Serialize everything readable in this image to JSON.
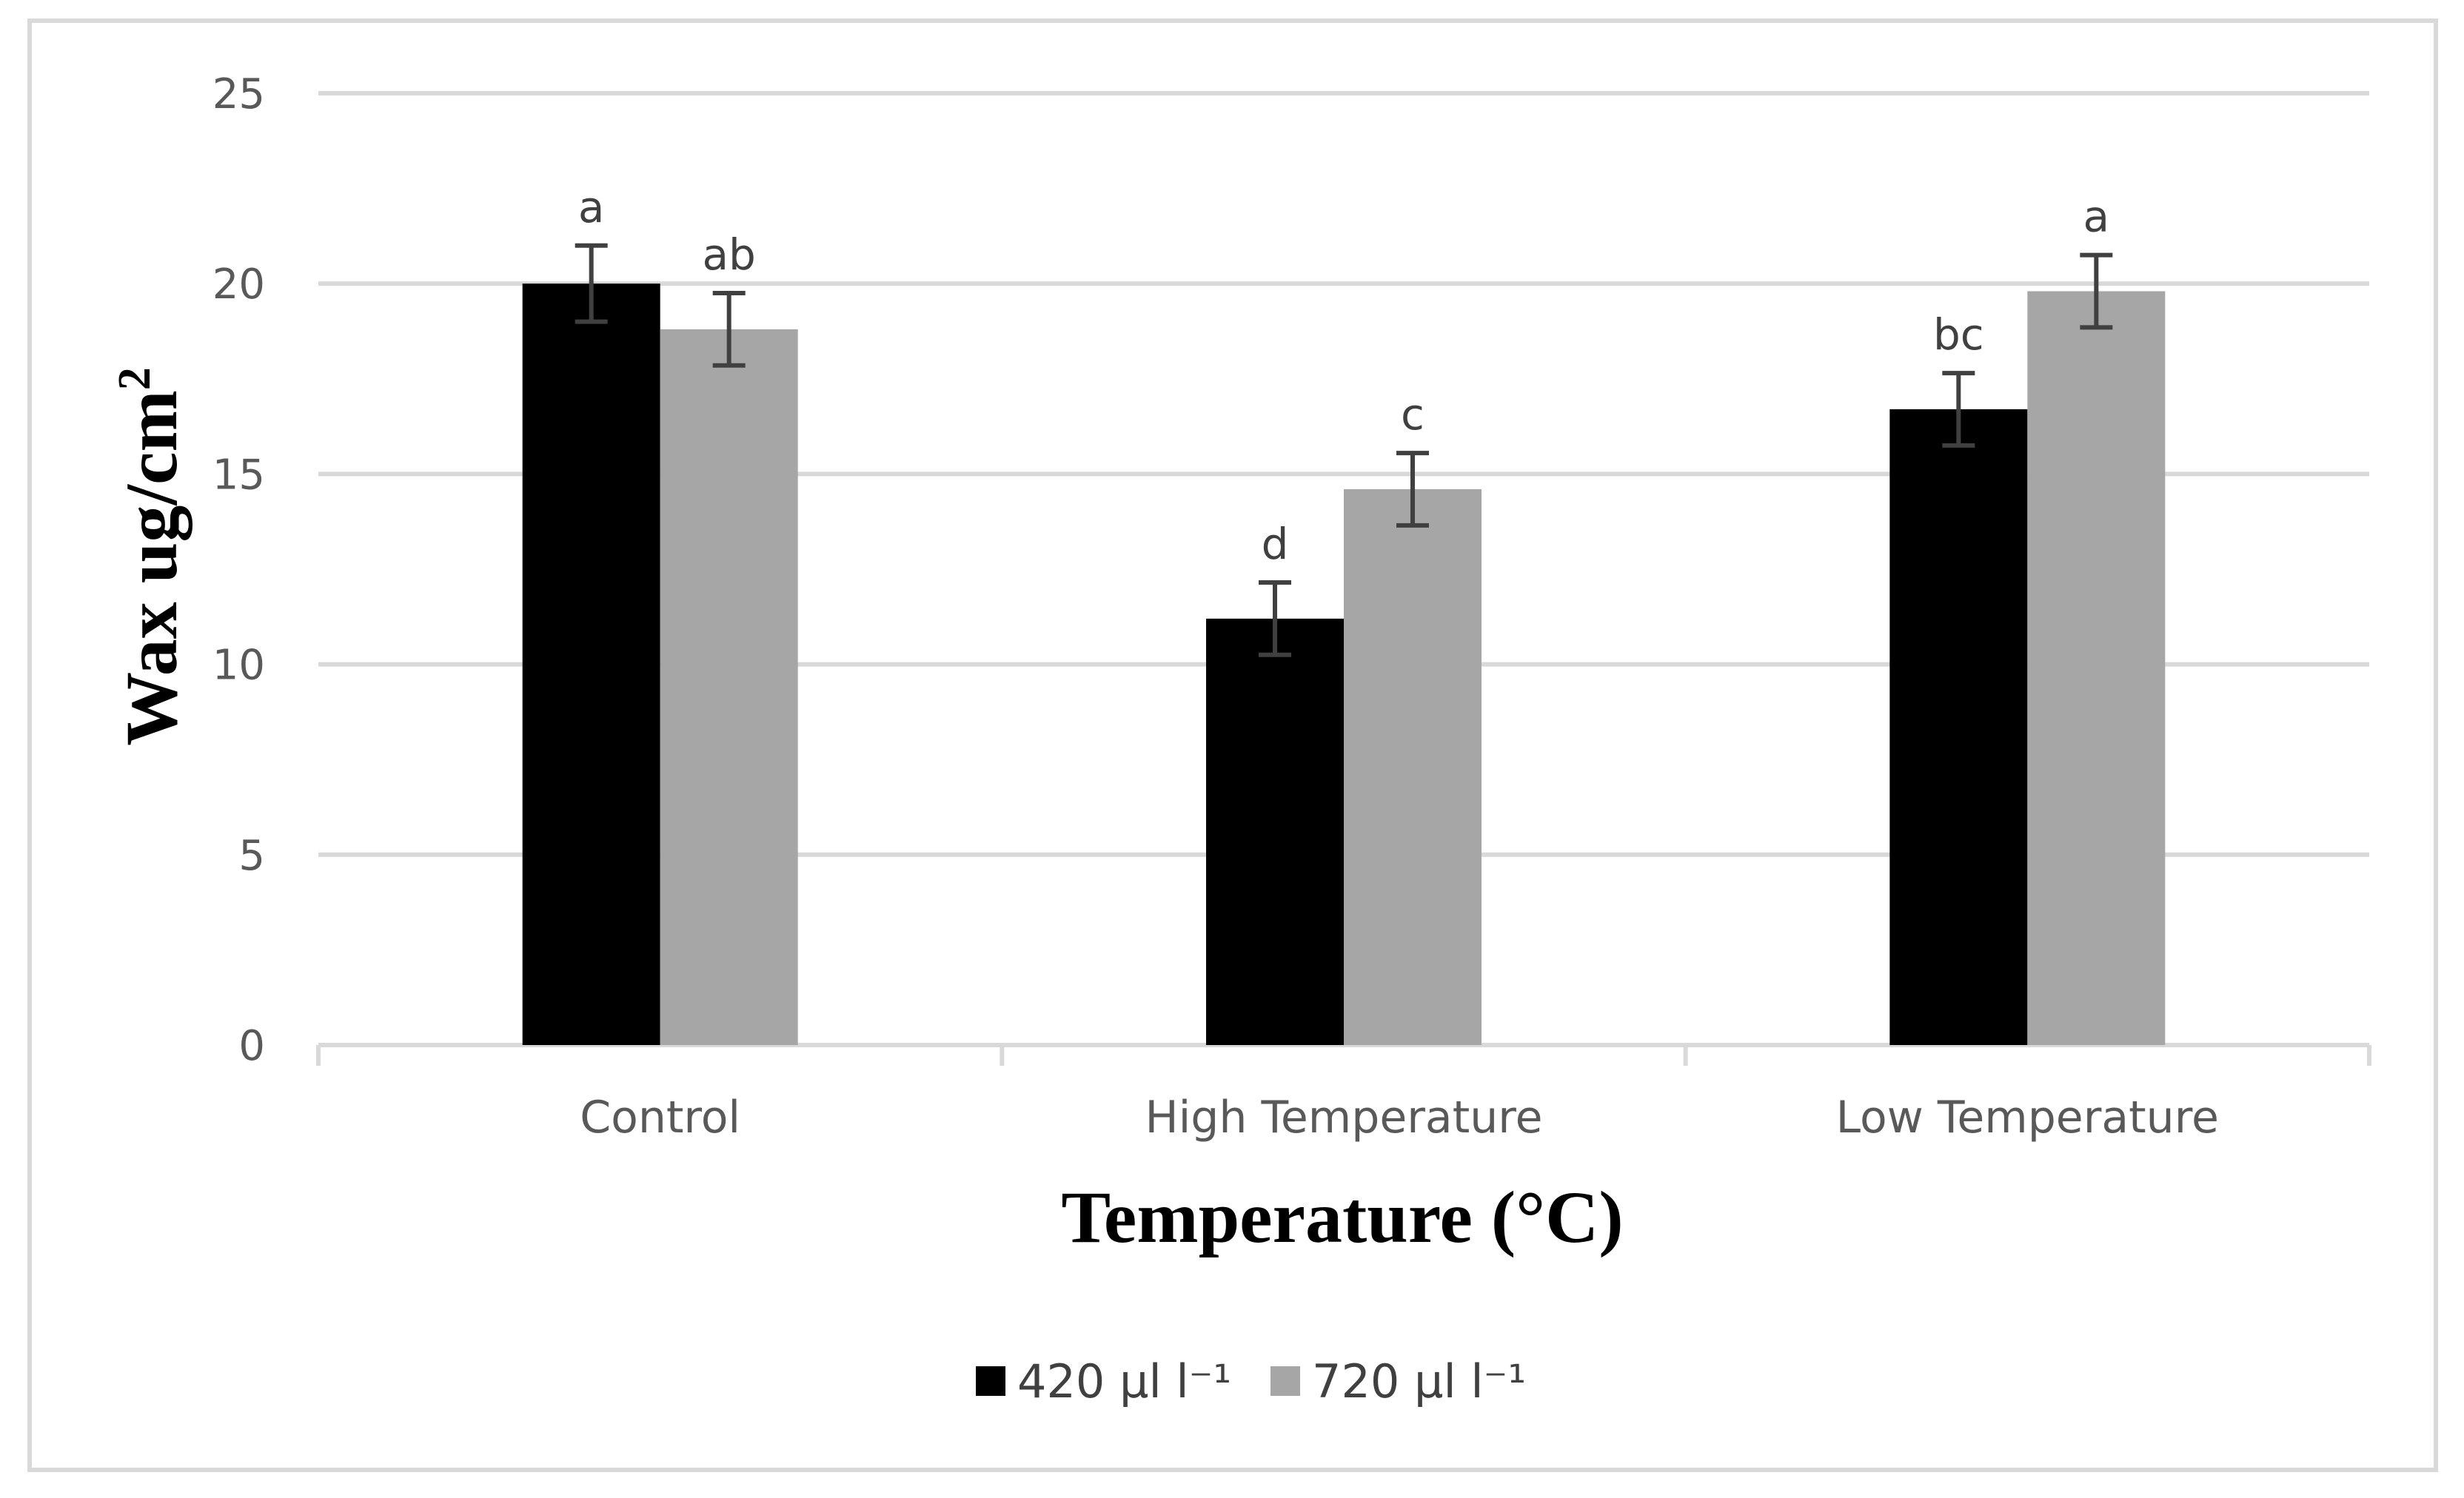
{
  "chart_data": {
    "type": "bar",
    "title": "",
    "xlabel": "Temperature (°C)",
    "ylabel": {
      "text": "Wax ug/cm",
      "superscript": "2"
    },
    "ylim": [
      0,
      25
    ],
    "yticks": [
      "0",
      "5",
      "10",
      "15",
      "20",
      "25"
    ],
    "categories": [
      "Control",
      "High Temperature",
      "Low Temperature"
    ],
    "series": [
      {
        "name": "420 µl l⁻¹",
        "color": "#000000",
        "values": [
          20.0,
          11.2,
          16.7
        ],
        "errors": [
          1.0,
          0.95,
          0.95
        ],
        "significance": [
          "a",
          "d",
          "bc"
        ]
      },
      {
        "name": "720 µl l⁻¹",
        "color": "#a6a6a6",
        "values": [
          18.8,
          14.6,
          19.8
        ],
        "errors": [
          0.95,
          0.95,
          0.95
        ],
        "significance": [
          "ab",
          "c",
          "a"
        ]
      }
    ],
    "grid": true,
    "legend_position": "bottom",
    "error_bar_color": "#404040",
    "gridline_color": "#d9d9d9"
  }
}
